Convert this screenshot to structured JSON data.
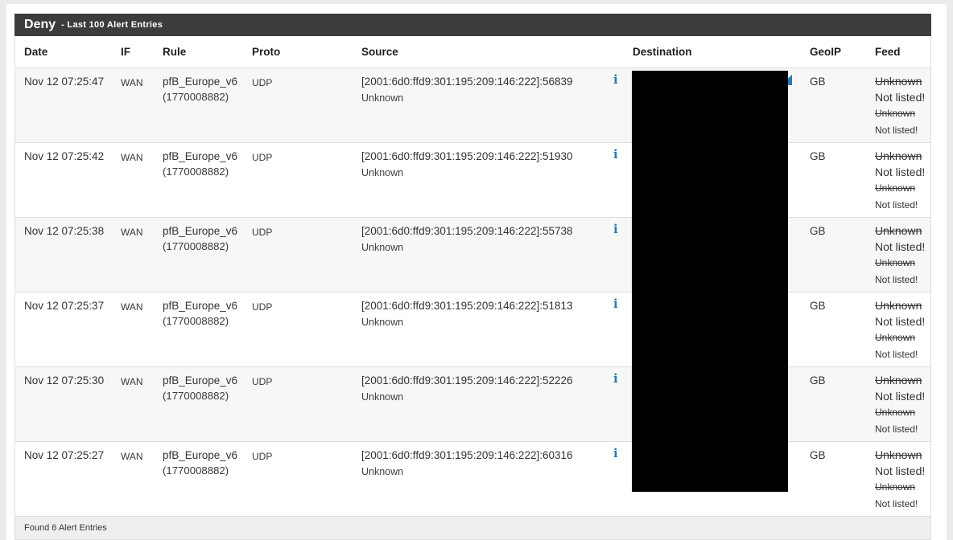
{
  "panel": {
    "title": "Deny",
    "subtitle": "- Last 100 Alert Entries",
    "footer_text": "Found 6 Alert Entries"
  },
  "icons": {
    "info": "i"
  },
  "colors": {
    "accent_blue": "#2779b0",
    "panel_header_bg": "#3c3c3c",
    "stripe": "#f7f7f7"
  },
  "table": {
    "columns": [
      "Date",
      "IF",
      "Rule",
      "Proto",
      "Source",
      "Destination",
      "GeoIP",
      "Feed"
    ],
    "rows": [
      {
        "date": "Nov 12 07:25:47",
        "if": "WAN",
        "rule_name": "pfB_Europe_v6",
        "rule_id": "(1770008882)",
        "proto": "UDP",
        "source": "[2001:6d0:ffd9:301:195:209:146:222]:56839",
        "source_host": "Unknown",
        "geoip": "GB",
        "feed": [
          "Unknown",
          "Not listed!",
          "Unknown",
          "Not listed!"
        ]
      },
      {
        "date": "Nov 12 07:25:42",
        "if": "WAN",
        "rule_name": "pfB_Europe_v6",
        "rule_id": "(1770008882)",
        "proto": "UDP",
        "source": "[2001:6d0:ffd9:301:195:209:146:222]:51930",
        "source_host": "Unknown",
        "geoip": "GB",
        "feed": [
          "Unknown",
          "Not listed!",
          "Unknown",
          "Not listed!"
        ]
      },
      {
        "date": "Nov 12 07:25:38",
        "if": "WAN",
        "rule_name": "pfB_Europe_v6",
        "rule_id": "(1770008882)",
        "proto": "UDP",
        "source": "[2001:6d0:ffd9:301:195:209:146:222]:55738",
        "source_host": "Unknown",
        "geoip": "GB",
        "feed": [
          "Unknown",
          "Not listed!",
          "Unknown",
          "Not listed!"
        ]
      },
      {
        "date": "Nov 12 07:25:37",
        "if": "WAN",
        "rule_name": "pfB_Europe_v6",
        "rule_id": "(1770008882)",
        "proto": "UDP",
        "source": "[2001:6d0:ffd9:301:195:209:146:222]:51813",
        "source_host": "Unknown",
        "geoip": "GB",
        "feed": [
          "Unknown",
          "Not listed!",
          "Unknown",
          "Not listed!"
        ]
      },
      {
        "date": "Nov 12 07:25:30",
        "if": "WAN",
        "rule_name": "pfB_Europe_v6",
        "rule_id": "(1770008882)",
        "proto": "UDP",
        "source": "[2001:6d0:ffd9:301:195:209:146:222]:52226",
        "source_host": "Unknown",
        "geoip": "GB",
        "feed": [
          "Unknown",
          "Not listed!",
          "Unknown",
          "Not listed!"
        ]
      },
      {
        "date": "Nov 12 07:25:27",
        "if": "WAN",
        "rule_name": "pfB_Europe_v6",
        "rule_id": "(1770008882)",
        "proto": "UDP",
        "source": "[2001:6d0:ffd9:301:195:209:146:222]:60316",
        "source_host": "Unknown",
        "geoip": "GB",
        "feed": [
          "Unknown",
          "Not listed!",
          "Unknown",
          "Not listed!"
        ]
      }
    ]
  }
}
